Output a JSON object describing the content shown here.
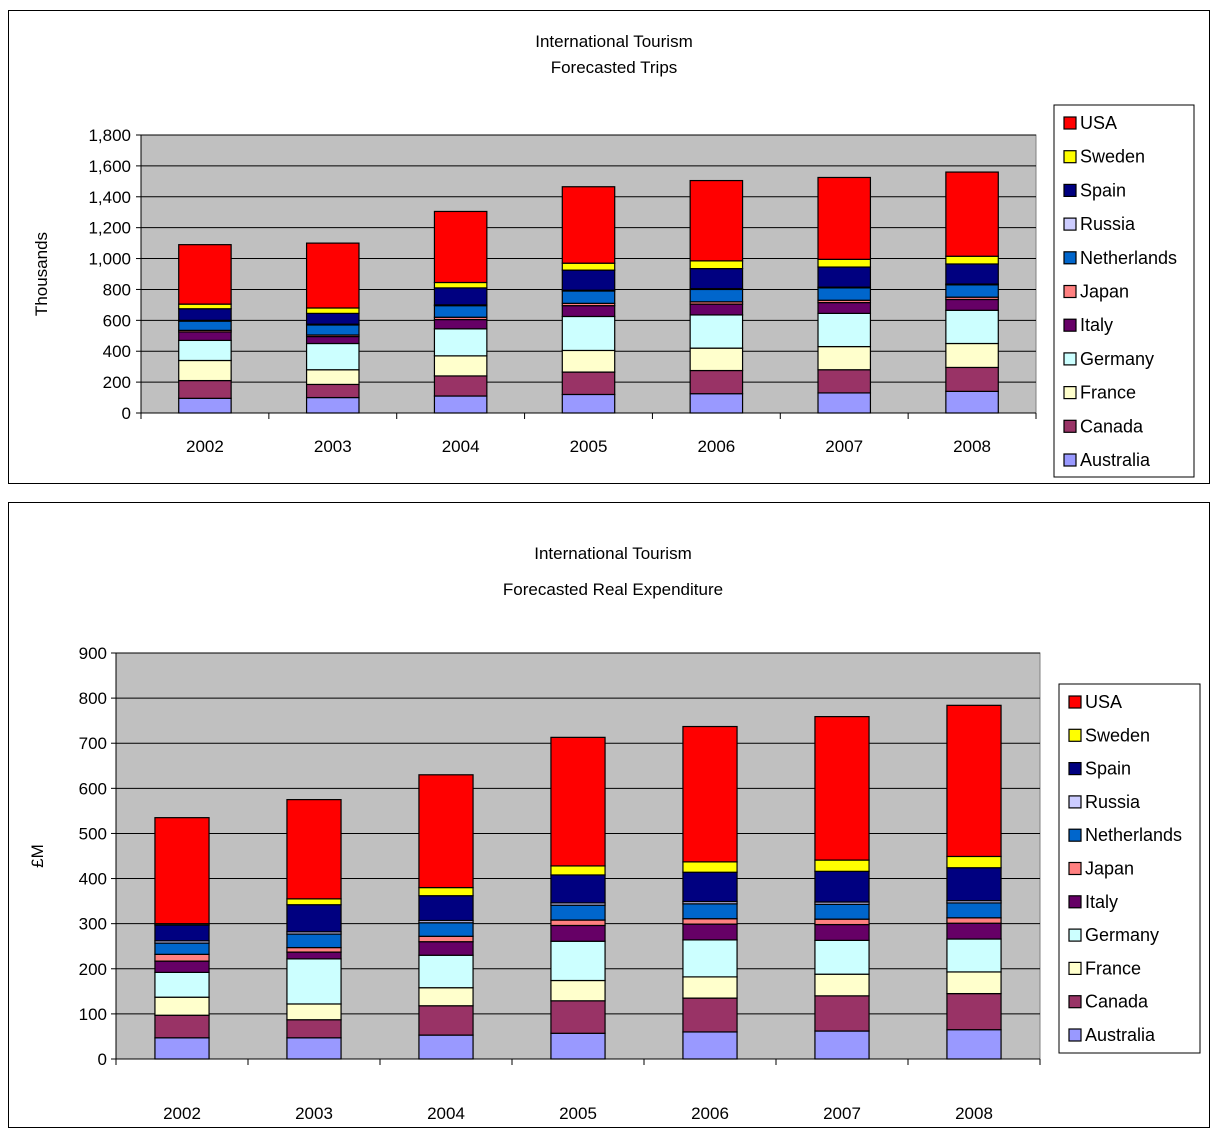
{
  "colors": {
    "Australia": "#9999ff",
    "Canada": "#993366",
    "France": "#ffffcc",
    "Germany": "#ccffff",
    "Italy": "#660066",
    "Japan": "#ff8080",
    "Netherlands": "#0066cc",
    "Russia": "#ccccff",
    "Spain": "#000080",
    "Sweden": "#ffff00",
    "USA": "#ff0000",
    "plot_area": "#c0c0c0"
  },
  "chart_data": [
    {
      "type": "bar",
      "stacked": true,
      "title": [
        "International Tourism",
        "Forecasted Trips"
      ],
      "xlabel": "",
      "ylabel": "Thousands",
      "ylim": [
        0,
        1800
      ],
      "yticks": [
        0,
        200,
        400,
        600,
        800,
        1000,
        1200,
        1400,
        1600,
        1800
      ],
      "yticklabels": [
        "0",
        "200",
        "400",
        "600",
        "800",
        "1,000",
        "1,200",
        "1,400",
        "1,600",
        "1,800"
      ],
      "grid": true,
      "legend_position": "right",
      "categories": [
        "2002",
        "2003",
        "2004",
        "2005",
        "2006",
        "2007",
        "2008"
      ],
      "legend": [
        "USA",
        "Sweden",
        "Spain",
        "Russia",
        "Netherlands",
        "Japan",
        "Italy",
        "Germany",
        "France",
        "Canada",
        "Australia"
      ],
      "series": [
        {
          "name": "Australia",
          "values": [
            95,
            100,
            110,
            120,
            125,
            130,
            140
          ]
        },
        {
          "name": "Canada",
          "values": [
            115,
            85,
            130,
            145,
            150,
            150,
            155
          ]
        },
        {
          "name": "France",
          "values": [
            130,
            95,
            130,
            140,
            145,
            150,
            155
          ]
        },
        {
          "name": "Germany",
          "values": [
            130,
            170,
            175,
            220,
            215,
            215,
            215
          ]
        },
        {
          "name": "Italy",
          "values": [
            55,
            45,
            60,
            70,
            70,
            70,
            70
          ]
        },
        {
          "name": "Japan",
          "values": [
            10,
            10,
            15,
            15,
            15,
            15,
            15
          ]
        },
        {
          "name": "Netherlands",
          "values": [
            60,
            65,
            75,
            80,
            80,
            80,
            80
          ]
        },
        {
          "name": "Russia",
          "values": [
            5,
            5,
            5,
            5,
            5,
            5,
            5
          ]
        },
        {
          "name": "Spain",
          "values": [
            75,
            70,
            110,
            130,
            130,
            130,
            130
          ]
        },
        {
          "name": "Sweden",
          "values": [
            30,
            35,
            35,
            45,
            50,
            50,
            50
          ]
        },
        {
          "name": "USA",
          "values": [
            385,
            420,
            460,
            495,
            520,
            530,
            545
          ]
        }
      ]
    },
    {
      "type": "bar",
      "stacked": true,
      "title": [
        "International Tourism",
        "Forecasted Real Expenditure"
      ],
      "xlabel": "",
      "ylabel": "£M",
      "ylim": [
        0,
        900
      ],
      "yticks": [
        0,
        100,
        200,
        300,
        400,
        500,
        600,
        700,
        800,
        900
      ],
      "yticklabels": [
        "0",
        "100",
        "200",
        "300",
        "400",
        "500",
        "600",
        "700",
        "800",
        "900"
      ],
      "grid": true,
      "legend_position": "right",
      "categories": [
        "2002",
        "2003",
        "2004",
        "2005",
        "2006",
        "2007",
        "2008"
      ],
      "legend": [
        "USA",
        "Sweden",
        "Spain",
        "Russia",
        "Netherlands",
        "Japan",
        "Italy",
        "Germany",
        "France",
        "Canada",
        "Australia"
      ],
      "series": [
        {
          "name": "Australia",
          "values": [
            47,
            47,
            53,
            57,
            60,
            62,
            65
          ]
        },
        {
          "name": "Canada",
          "values": [
            50,
            40,
            65,
            72,
            75,
            78,
            80
          ]
        },
        {
          "name": "France",
          "values": [
            40,
            35,
            40,
            45,
            47,
            48,
            48
          ]
        },
        {
          "name": "Germany",
          "values": [
            55,
            100,
            72,
            87,
            82,
            75,
            73
          ]
        },
        {
          "name": "Italy",
          "values": [
            25,
            15,
            30,
            35,
            35,
            35,
            35
          ]
        },
        {
          "name": "Japan",
          "values": [
            15,
            10,
            12,
            12,
            12,
            12,
            12
          ]
        },
        {
          "name": "Netherlands",
          "values": [
            25,
            30,
            30,
            33,
            33,
            33,
            33
          ]
        },
        {
          "name": "Russia",
          "values": [
            5,
            5,
            5,
            5,
            5,
            5,
            5
          ]
        },
        {
          "name": "Spain",
          "values": [
            35,
            60,
            55,
            62,
            65,
            68,
            73
          ]
        },
        {
          "name": "Sweden",
          "values": [
            3,
            13,
            18,
            20,
            23,
            25,
            25
          ]
        },
        {
          "name": "USA",
          "values": [
            235,
            220,
            250,
            285,
            300,
            318,
            335
          ]
        }
      ]
    }
  ]
}
